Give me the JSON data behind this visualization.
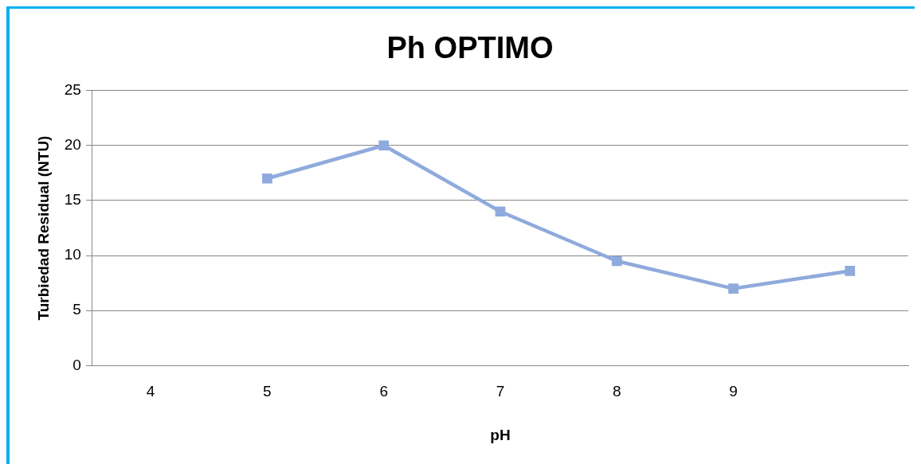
{
  "chart_data": {
    "type": "line",
    "title": "Ph OPTIMO",
    "xlabel": "pH",
    "ylabel": "Turbiedad Residual (NTU)",
    "categories": [
      "4",
      "5",
      "6",
      "7",
      "8",
      "9",
      null
    ],
    "series": [
      {
        "color": "#8faadc",
        "values": [
          null,
          17,
          20,
          14,
          9.5,
          7,
          8.6
        ]
      }
    ],
    "ylim": [
      0,
      25
    ],
    "yticks": [
      0,
      5,
      10,
      15,
      20,
      25
    ],
    "grid": "y",
    "legend": false,
    "marker": "square",
    "line_style": "solid"
  }
}
